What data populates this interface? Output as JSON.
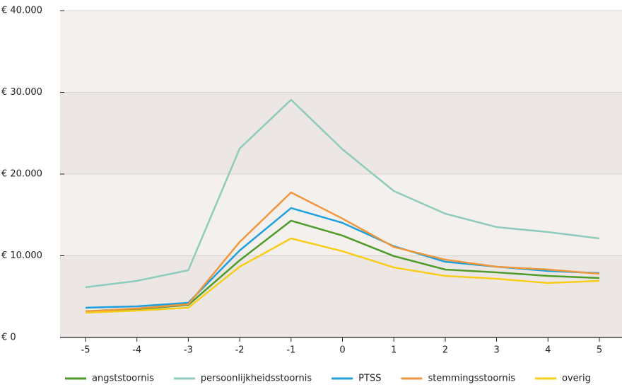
{
  "chart_data": {
    "type": "line",
    "categories": [
      "-5",
      "-4",
      "-3",
      "-2",
      "-1",
      "0",
      "1",
      "2",
      "3",
      "4",
      "5"
    ],
    "series": [
      {
        "name": "angststoornis",
        "color": "#4e9a2a",
        "values": [
          3200,
          3460,
          3980,
          9440,
          14290,
          12470,
          9960,
          8310,
          7970,
          7530,
          7270
        ]
      },
      {
        "name": "persoonlijkheidsstoornis",
        "color": "#8fcbbd",
        "values": [
          6150,
          6930,
          8230,
          23120,
          29090,
          23030,
          17920,
          15150,
          13510,
          12900,
          12120
        ]
      },
      {
        "name": "PTSS",
        "color": "#1ea0dc",
        "values": [
          3640,
          3810,
          4240,
          10650,
          15840,
          14030,
          11170,
          9260,
          8660,
          8140,
          7880
        ]
      },
      {
        "name": "stemmingsstoornis",
        "color": "#f0963c",
        "values": [
          3200,
          3550,
          4070,
          11690,
          17750,
          14550,
          11080,
          9520,
          8660,
          8310,
          7790
        ]
      },
      {
        "name": "overig",
        "color": "#f7cd1a",
        "values": [
          3030,
          3290,
          3640,
          8660,
          12120,
          10560,
          8570,
          7530,
          7190,
          6670,
          6930
        ]
      }
    ],
    "ylim": [
      0,
      40000
    ],
    "yticks": [
      {
        "value": 0,
        "label": "€ 0"
      },
      {
        "value": 10000,
        "label": "€ 10.000"
      },
      {
        "value": 20000,
        "label": "€ 20.000"
      },
      {
        "value": 30000,
        "label": "€ 30.000"
      },
      {
        "value": 40000,
        "label": "€ 40.000"
      }
    ],
    "bands": true,
    "legend": "bottom"
  }
}
